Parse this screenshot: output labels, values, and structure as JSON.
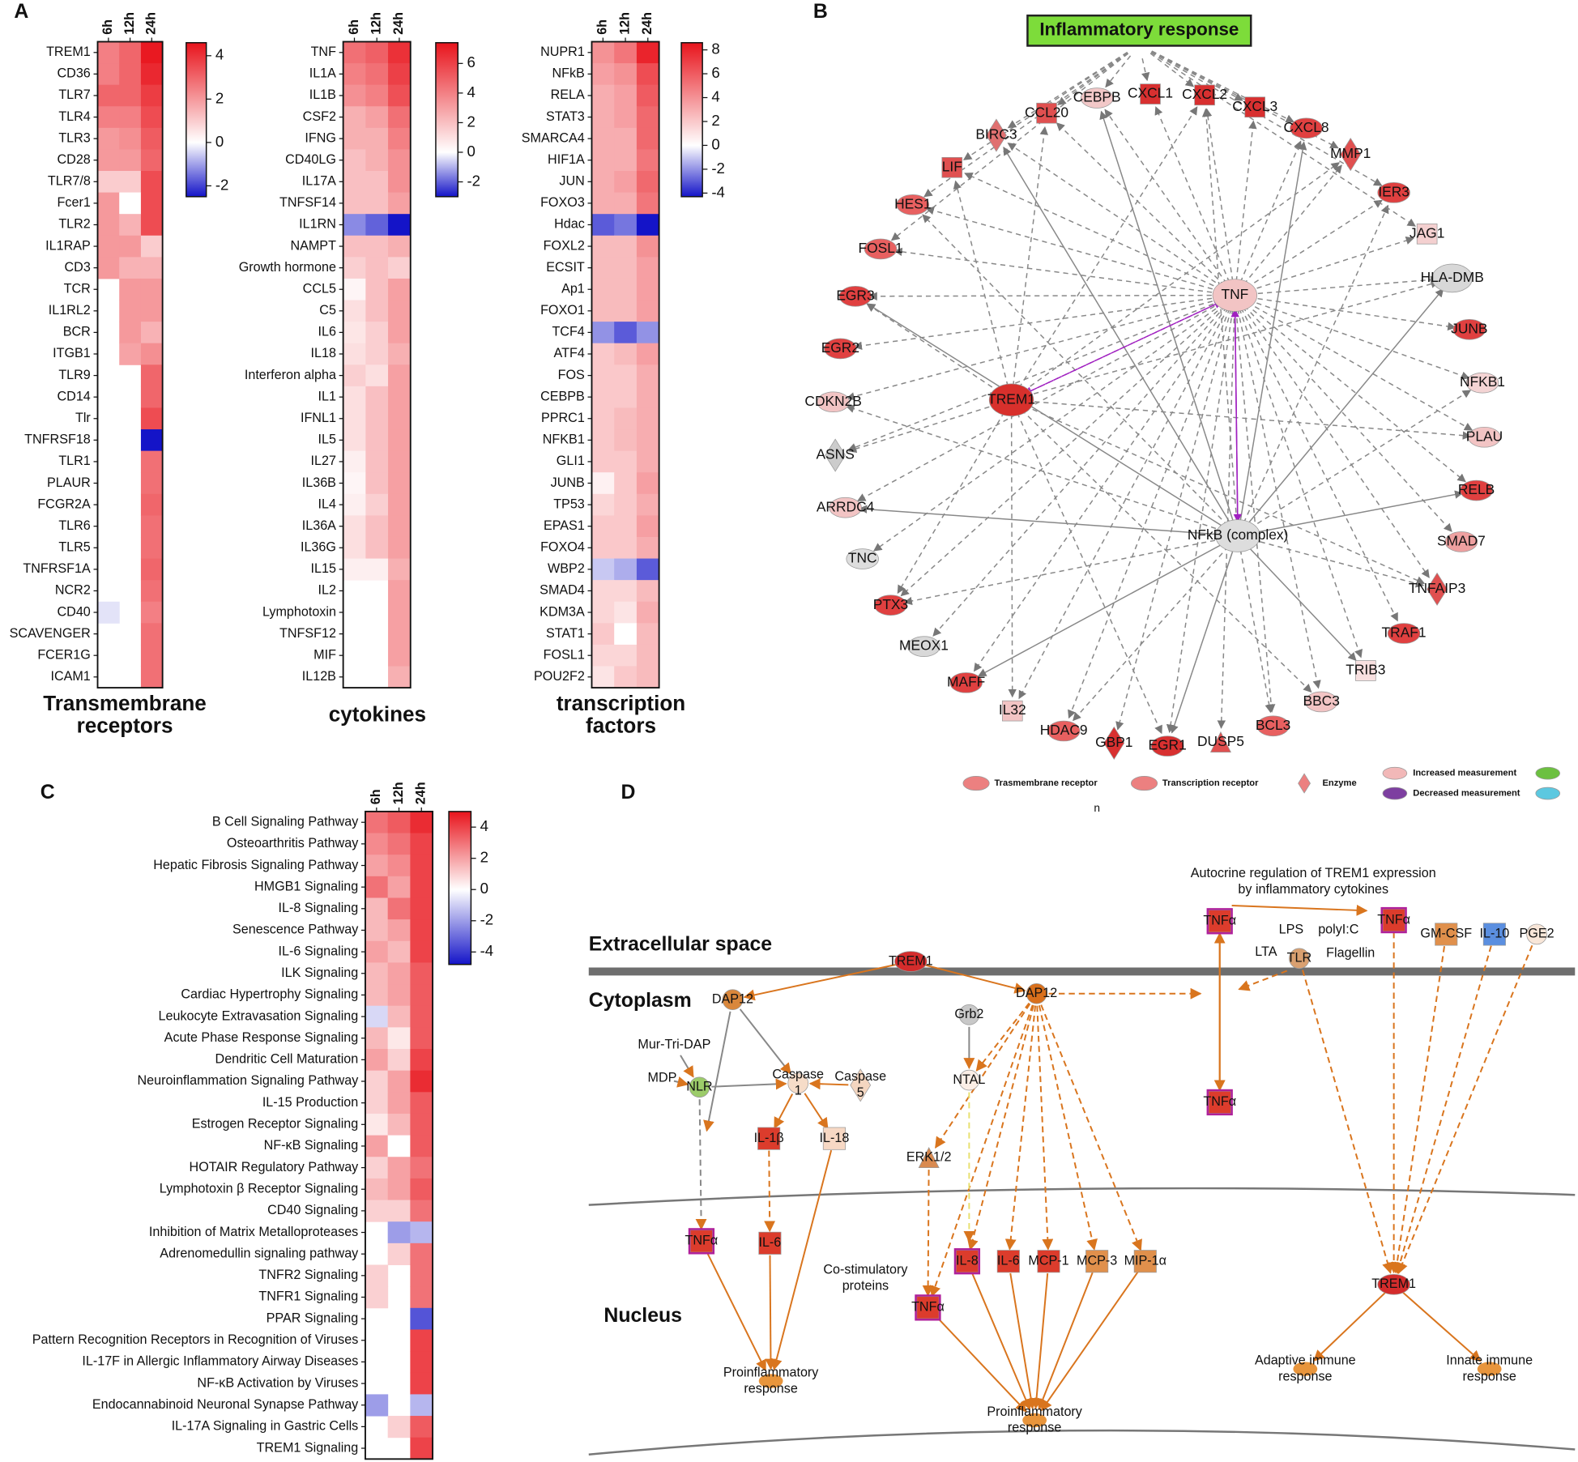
{
  "panels": [
    "A",
    "B",
    "C",
    "D"
  ],
  "chart_data": [
    {
      "type": "heatmap",
      "title": [
        "Transmembrane",
        "receptors"
      ],
      "columns": [
        "6h",
        "12h",
        "24h"
      ],
      "rows": [
        "TREM1",
        "CD36",
        "TLR7",
        "TLR4",
        "TLR3",
        "CD28",
        "TLR7/8",
        "Fcer1",
        "TLR2",
        "IL1RAP",
        "CD3",
        "TCR",
        "IL1RL2",
        "BCR",
        "ITGB1",
        "TLR9",
        "CD14",
        "Tlr",
        "TNFRSF18",
        "TLR1",
        "PLAUR",
        "FCGR2A",
        "TLR6",
        "TLR5",
        "TNFRSF1A",
        "NCR2",
        "CD40",
        "SCAVENGER",
        "FCER1G",
        "ICAM1"
      ],
      "values": [
        [
          2.5,
          3,
          4.5
        ],
        [
          2.5,
          3,
          4.2
        ],
        [
          3,
          3,
          3.8
        ],
        [
          2.5,
          2.5,
          3.5
        ],
        [
          2,
          2.2,
          3.2
        ],
        [
          2,
          2,
          3
        ],
        [
          1,
          1,
          3.5
        ],
        [
          2,
          0,
          3.5
        ],
        [
          2,
          1.5,
          3.5
        ],
        [
          2,
          2,
          1
        ],
        [
          2,
          1.5,
          1.5
        ],
        [
          null,
          2,
          2
        ],
        [
          null,
          2,
          2
        ],
        [
          null,
          2,
          1.5
        ],
        [
          null,
          1.8,
          2.2
        ],
        [
          null,
          null,
          3
        ],
        [
          null,
          null,
          3
        ],
        [
          null,
          null,
          3.5
        ],
        [
          null,
          null,
          -2.5
        ],
        [
          null,
          null,
          2.8
        ],
        [
          null,
          null,
          2.8
        ],
        [
          null,
          null,
          3
        ],
        [
          null,
          null,
          2.8
        ],
        [
          null,
          null,
          2.8
        ],
        [
          null,
          null,
          3
        ],
        [
          null,
          null,
          2.8
        ],
        [
          -0.3,
          null,
          2.5
        ],
        [
          null,
          null,
          2.8
        ],
        [
          null,
          null,
          2.8
        ],
        [
          null,
          null,
          2.8
        ]
      ],
      "zlim": [
        -2.5,
        4.6
      ],
      "zticks": [
        -2,
        0,
        2,
        4
      ],
      "colors": {
        "low": "#1414c8",
        "mid": "#ffffff",
        "high": "#e8141c"
      }
    },
    {
      "type": "heatmap",
      "title": [
        "cytokines"
      ],
      "columns": [
        "6h",
        "12h",
        "24h"
      ],
      "rows": [
        "TNF",
        "IL1A",
        "IL1B",
        "CSF2",
        "IFNG",
        "CD40LG",
        "IL17A",
        "TNFSF14",
        "IL1RN",
        "NAMPT",
        "Growth hormone",
        "CCL5",
        "C5",
        "IL6",
        "IL18",
        "Interferon alpha",
        "IL1",
        "IFNL1",
        "IL5",
        "IL27",
        "IL36B",
        "IL4",
        "IL36A",
        "IL36G",
        "IL15",
        "IL2",
        "Lymphotoxin",
        "TNFSF12",
        "MIF",
        "IL12B"
      ],
      "values": [
        [
          4.5,
          5,
          6.5
        ],
        [
          4,
          4.5,
          6
        ],
        [
          3.5,
          4,
          5.5
        ],
        [
          2.5,
          3,
          4.5
        ],
        [
          2.5,
          2.5,
          4
        ],
        [
          2,
          2.5,
          3.5
        ],
        [
          2,
          2,
          3.5
        ],
        [
          2,
          2,
          3
        ],
        [
          -1.5,
          -2,
          -3.5
        ],
        [
          2,
          2,
          2.5
        ],
        [
          1.5,
          2,
          1.5
        ],
        [
          0.3,
          2,
          3
        ],
        [
          1,
          2,
          3
        ],
        [
          0.8,
          1.5,
          3
        ],
        [
          1,
          1.5,
          2.5
        ],
        [
          1.5,
          1,
          3
        ],
        [
          1,
          2,
          3
        ],
        [
          1,
          2,
          3
        ],
        [
          1,
          2,
          3
        ],
        [
          0.5,
          2,
          3
        ],
        [
          0.3,
          2,
          3
        ],
        [
          0.5,
          1.5,
          3
        ],
        [
          1,
          2,
          3
        ],
        [
          1,
          2,
          3
        ],
        [
          0.5,
          0.5,
          2.5
        ],
        [
          null,
          null,
          3
        ],
        [
          null,
          null,
          3
        ],
        [
          null,
          null,
          3
        ],
        [
          null,
          null,
          3
        ],
        [
          null,
          null,
          2.5
        ]
      ],
      "zlim": [
        -3,
        7.4
      ],
      "zticks": [
        -2,
        0,
        2,
        4,
        6
      ],
      "colors": {
        "low": "#1414c8",
        "mid": "#ffffff",
        "high": "#e8141c"
      }
    },
    {
      "type": "heatmap",
      "title": [
        "transcription",
        "factors"
      ],
      "columns": [
        "6h",
        "12h",
        "24h"
      ],
      "rows": [
        "NUPR1",
        "NFkB",
        "RELA",
        "STAT3",
        "SMARCA4",
        "HIF1A",
        "JUN",
        "FOXO3",
        "Hdac",
        "FOXL2",
        "ECSIT",
        "Ap1",
        "FOXO1",
        "TCF4",
        "ATF4",
        "FOS",
        "CEBPB",
        "PPRC1",
        "NFKB1",
        "GLI1",
        "JUNB",
        "TP53",
        "EPAS1",
        "FOXO4",
        "WBP2",
        "SMAD4",
        "KDM3A",
        "STAT1",
        "FOSL1",
        "POU2F2"
      ],
      "values": [
        [
          4,
          5,
          8
        ],
        [
          3.5,
          4,
          6.5
        ],
        [
          3,
          3.5,
          6
        ],
        [
          3,
          3.5,
          5.5
        ],
        [
          3,
          3,
          5.5
        ],
        [
          3,
          3,
          5
        ],
        [
          3,
          3.5,
          5.5
        ],
        [
          3,
          3,
          5
        ],
        [
          -3,
          -2.5,
          -4.5
        ],
        [
          2.5,
          2.5,
          4
        ],
        [
          2.5,
          2.5,
          3.5
        ],
        [
          2.5,
          2.5,
          3.5
        ],
        [
          2.5,
          2.5,
          3.5
        ],
        [
          -2,
          -3,
          -2
        ],
        [
          2,
          2.5,
          3.5
        ],
        [
          2,
          2,
          3
        ],
        [
          2,
          2,
          3
        ],
        [
          2,
          2.5,
          3
        ],
        [
          2,
          2.5,
          3
        ],
        [
          2,
          2,
          3
        ],
        [
          0.5,
          2,
          3.5
        ],
        [
          1.5,
          2,
          3
        ],
        [
          2,
          2,
          3.5
        ],
        [
          2,
          2,
          3
        ],
        [
          -1,
          -1.5,
          -3
        ],
        [
          1.5,
          1.5,
          2.5
        ],
        [
          1.5,
          1,
          3
        ],
        [
          2,
          0,
          2.5
        ],
        [
          1.5,
          1.5,
          2.5
        ],
        [
          1,
          2,
          2.5
        ]
      ],
      "zlim": [
        -4.3,
        8.6
      ],
      "zticks": [
        -4,
        -2,
        0,
        2,
        4,
        6,
        8
      ],
      "colors": {
        "low": "#1414c8",
        "mid": "#ffffff",
        "high": "#e8141c"
      }
    },
    {
      "type": "heatmap",
      "columns": [
        "6h",
        "12h",
        "24h"
      ],
      "rows": [
        "B Cell Signaling Pathway",
        "Osteoarthritis Pathway",
        "Hepatic Fibrosis Signaling Pathway",
        "HMGB1 Signaling",
        "IL-8 Signaling",
        "Senescence Pathway",
        "IL-6 Signaling",
        "ILK Signaling",
        "Cardiac Hypertrophy Signaling",
        "Leukocyte Extravasation Signaling",
        "Acute Phase Response Signaling",
        "Dendritic Cell Maturation",
        "Neuroinflammation Signaling Pathway",
        "IL-15 Production",
        "Estrogen Receptor Signaling",
        "NF-κB Signaling",
        "HOTAIR Regulatory Pathway",
        "Lymphotoxin β Receptor Signaling",
        "CD40 Signaling",
        "Inhibition of Matrix Metalloproteases",
        "Adrenomedullin signaling pathway",
        "TNFR2 Signaling",
        "TNFR1 Signaling",
        "PPAR Signaling",
        "Pattern Recognition Receptors in Recognition of Viruses",
        "IL-17F in Allergic Inflammatory Airway Diseases",
        "NF-κB Activation by Viruses",
        "Endocannabinoid Neuronal Synapse Pathway",
        "IL-17A Signaling in Gastric Cells",
        "TREM1 Signaling"
      ],
      "values": [
        [
          3,
          3.5,
          4.5
        ],
        [
          2.5,
          3,
          4
        ],
        [
          2,
          2.5,
          4
        ],
        [
          3,
          2,
          4
        ],
        [
          1.5,
          3,
          4
        ],
        [
          1.5,
          2,
          4
        ],
        [
          2,
          1.5,
          4
        ],
        [
          1.5,
          2,
          3.5
        ],
        [
          1.5,
          2,
          3.5
        ],
        [
          -0.8,
          1.5,
          3.5
        ],
        [
          1.5,
          0.5,
          3.5
        ],
        [
          2,
          1,
          4
        ],
        [
          1,
          2,
          4.5
        ],
        [
          1,
          2,
          3.5
        ],
        [
          0.5,
          1.5,
          3.5
        ],
        [
          2,
          0,
          3.5
        ],
        [
          1,
          2,
          3
        ],
        [
          1.5,
          2,
          3.5
        ],
        [
          1,
          1,
          3
        ],
        [
          null,
          -2,
          -1.5
        ],
        [
          null,
          1,
          3
        ],
        [
          1,
          null,
          3
        ],
        [
          1,
          null,
          3
        ],
        [
          null,
          null,
          -3.5
        ],
        [
          null,
          null,
          4
        ],
        [
          null,
          null,
          4
        ],
        [
          null,
          null,
          4
        ],
        [
          -2,
          null,
          -1.5
        ],
        [
          null,
          1,
          3.5
        ],
        [
          null,
          null,
          4
        ]
      ],
      "zlim": [
        -4.8,
        5
      ],
      "zticks": [
        -4,
        -2,
        0,
        2,
        4
      ],
      "colors": {
        "low": "#1414c8",
        "mid": "#ffffff",
        "high": "#e8141c"
      }
    }
  ],
  "network": {
    "title": "Inflammatory response",
    "nodes": [
      "TNF",
      "TREM1",
      "NFkB (complex)",
      "CCL20",
      "CEBPB",
      "CXCL1",
      "CXCL2",
      "CXCL3",
      "CXCL8",
      "MMP1",
      "IER3",
      "JAG1",
      "HLA-DMB",
      "JUNB",
      "NFKB1",
      "PLAU",
      "RELB",
      "SMAD7",
      "TNFAIP3",
      "TRAF1",
      "TRIB3",
      "BBC3",
      "BCL3",
      "DUSP5",
      "EGR1",
      "GBP1",
      "HDAC9",
      "IL32",
      "MAFF",
      "MEOX1",
      "PTX3",
      "TNC",
      "ARRDC4",
      "ASNS",
      "CDKN2B",
      "EGR2",
      "EGR3",
      "FOSL1",
      "HES1",
      "LIF",
      "BIRC3"
    ],
    "legend": [
      "Trasmembrane receptor",
      "Transcription receptor",
      "Enzyme",
      "Increased measurement",
      "Decreased measurement"
    ],
    "note": "n"
  },
  "pathway": {
    "caption": [
      "Autocrine regulation of TREM1 expression",
      "by inflammatory cytokines"
    ],
    "compartments": [
      "Extracellular space",
      "Cytoplasm",
      "Nucleus"
    ],
    "nodes": [
      "TREM1",
      "DAP12",
      "DAP12",
      "Mur-Tri-DAP",
      "MDP",
      "NLR",
      [
        "Caspase",
        "1"
      ],
      [
        "Caspase",
        "5"
      ],
      "Grb2",
      "NTAL",
      "IL-1β",
      "IL-18",
      "ERK1/2",
      "TNFα",
      "TNFα",
      "TNFα",
      "LPS",
      "polyI:C",
      "LTA",
      "TLR",
      "Flagellin",
      "GM-CSF",
      "IL-10",
      "PGE2",
      "TNFα",
      "IL-6",
      "TNFα",
      "IL-8",
      "IL-6",
      "MCP-1",
      "MCP-3",
      "MIP-1α",
      "TREM1",
      [
        "Co-stimulatory",
        "proteins"
      ]
    ],
    "outcomes": [
      [
        "Proinflammatory",
        "response"
      ],
      [
        "Proinflammatory",
        "response"
      ],
      [
        "Adaptive immune",
        "response"
      ],
      [
        "Innate immune",
        "response"
      ]
    ]
  }
}
